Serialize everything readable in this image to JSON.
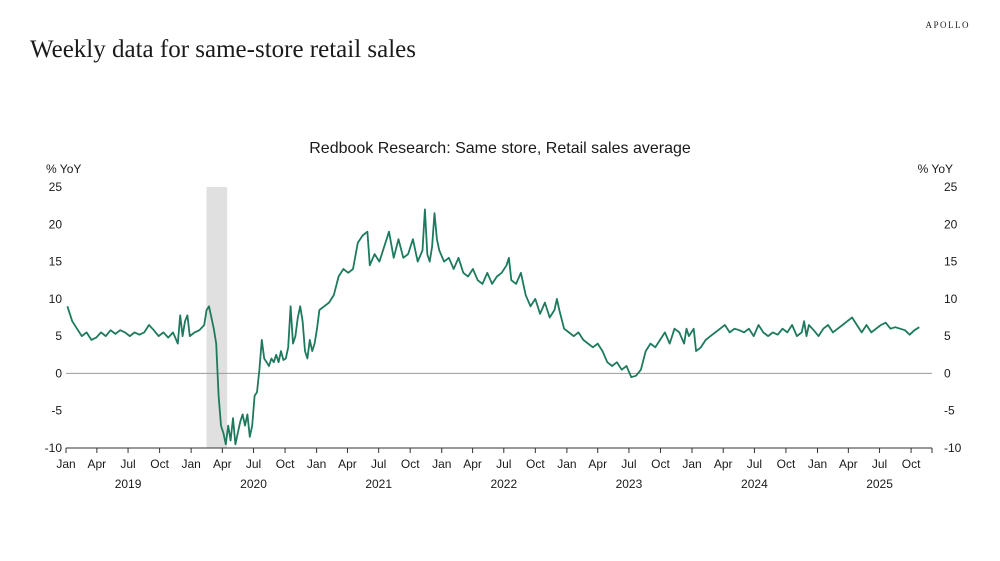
{
  "brand": "APOLLO",
  "page_title": "Weekly data for same-store retail sales",
  "colors": {
    "line": "#1e7a5f",
    "recession": "#e0e0e0",
    "zero_line": "#999999",
    "axis": "#333333"
  },
  "chart_data": {
    "type": "line",
    "title": "Redbook Research: Same store, Retail sales average",
    "ylabel_left": "% YoY",
    "ylabel_right": "% YoY",
    "ylim": [
      -10,
      25
    ],
    "yticks": [
      25,
      20,
      15,
      10,
      5,
      0,
      -5,
      -10
    ],
    "xlim": [
      "2019-01-01",
      "2025-12-01"
    ],
    "month_ticks": [
      "Jan",
      "Apr",
      "Jul",
      "Oct",
      "Jan",
      "Apr",
      "Jul",
      "Oct",
      "Jan",
      "Apr",
      "Jul",
      "Oct",
      "Jan",
      "Apr",
      "Jul",
      "Oct",
      "Jan",
      "Apr",
      "Jul",
      "Oct",
      "Jan",
      "Apr",
      "Jul",
      "Oct",
      "Jan",
      "Apr",
      "Jul",
      "Oct"
    ],
    "years": [
      "2019",
      "2020",
      "2021",
      "2022",
      "2023",
      "2024",
      "2025"
    ],
    "recession_band": [
      "2020-02-15",
      "2020-04-15"
    ],
    "legend": "none",
    "grid": false,
    "series": [
      {
        "color": "#1e7a5f",
        "points": [
          [
            "2019-01-05",
            9.0
          ],
          [
            "2019-01-19",
            7.0
          ],
          [
            "2019-02-02",
            6.0
          ],
          [
            "2019-02-16",
            5.0
          ],
          [
            "2019-03-02",
            5.5
          ],
          [
            "2019-03-16",
            4.5
          ],
          [
            "2019-03-30",
            4.8
          ],
          [
            "2019-04-13",
            5.5
          ],
          [
            "2019-04-27",
            5.0
          ],
          [
            "2019-05-11",
            5.8
          ],
          [
            "2019-05-25",
            5.3
          ],
          [
            "2019-06-08",
            5.8
          ],
          [
            "2019-06-22",
            5.5
          ],
          [
            "2019-07-06",
            5.0
          ],
          [
            "2019-07-20",
            5.5
          ],
          [
            "2019-08-03",
            5.2
          ],
          [
            "2019-08-17",
            5.5
          ],
          [
            "2019-08-31",
            6.5
          ],
          [
            "2019-09-14",
            5.8
          ],
          [
            "2019-09-28",
            5.0
          ],
          [
            "2019-10-12",
            5.5
          ],
          [
            "2019-10-26",
            4.8
          ],
          [
            "2019-11-09",
            5.5
          ],
          [
            "2019-11-23",
            4.0
          ],
          [
            "2019-11-30",
            7.8
          ],
          [
            "2019-12-07",
            5.0
          ],
          [
            "2019-12-14",
            7.0
          ],
          [
            "2019-12-21",
            7.8
          ],
          [
            "2019-12-28",
            5.0
          ],
          [
            "2020-01-11",
            5.5
          ],
          [
            "2020-01-25",
            5.8
          ],
          [
            "2020-02-08",
            6.5
          ],
          [
            "2020-02-15",
            8.5
          ],
          [
            "2020-02-22",
            9.0
          ],
          [
            "2020-03-07",
            6.0
          ],
          [
            "2020-03-14",
            4.0
          ],
          [
            "2020-03-21",
            -3.0
          ],
          [
            "2020-03-28",
            -7.0
          ],
          [
            "2020-04-04",
            -8.0
          ],
          [
            "2020-04-11",
            -9.5
          ],
          [
            "2020-04-18",
            -7.0
          ],
          [
            "2020-04-25",
            -9.0
          ],
          [
            "2020-05-02",
            -6.0
          ],
          [
            "2020-05-09",
            -9.5
          ],
          [
            "2020-05-16",
            -8.0
          ],
          [
            "2020-05-23",
            -6.5
          ],
          [
            "2020-05-30",
            -5.5
          ],
          [
            "2020-06-06",
            -7.0
          ],
          [
            "2020-06-13",
            -5.5
          ],
          [
            "2020-06-20",
            -8.5
          ],
          [
            "2020-06-27",
            -7.0
          ],
          [
            "2020-07-04",
            -3.0
          ],
          [
            "2020-07-11",
            -2.5
          ],
          [
            "2020-07-18",
            0.5
          ],
          [
            "2020-07-25",
            4.5
          ],
          [
            "2020-08-01",
            2.0
          ],
          [
            "2020-08-08",
            1.5
          ],
          [
            "2020-08-15",
            1.0
          ],
          [
            "2020-08-22",
            2.0
          ],
          [
            "2020-08-29",
            1.5
          ],
          [
            "2020-09-05",
            2.5
          ],
          [
            "2020-09-12",
            1.5
          ],
          [
            "2020-09-19",
            3.0
          ],
          [
            "2020-09-26",
            1.8
          ],
          [
            "2020-10-03",
            2.0
          ],
          [
            "2020-10-10",
            3.5
          ],
          [
            "2020-10-17",
            9.0
          ],
          [
            "2020-10-24",
            4.0
          ],
          [
            "2020-10-31",
            5.0
          ],
          [
            "2020-11-07",
            7.5
          ],
          [
            "2020-11-14",
            9.0
          ],
          [
            "2020-11-21",
            7.0
          ],
          [
            "2020-11-28",
            3.0
          ],
          [
            "2020-12-05",
            2.0
          ],
          [
            "2020-12-12",
            4.5
          ],
          [
            "2020-12-19",
            3.0
          ],
          [
            "2020-12-26",
            4.0
          ],
          [
            "2021-01-02",
            6.0
          ],
          [
            "2021-01-09",
            8.5
          ],
          [
            "2021-01-23",
            9.0
          ],
          [
            "2021-02-06",
            9.5
          ],
          [
            "2021-02-20",
            10.5
          ],
          [
            "2021-03-06",
            13.0
          ],
          [
            "2021-03-20",
            14.0
          ],
          [
            "2021-04-03",
            13.5
          ],
          [
            "2021-04-17",
            14.0
          ],
          [
            "2021-05-01",
            17.5
          ],
          [
            "2021-05-15",
            18.5
          ],
          [
            "2021-05-29",
            19.0
          ],
          [
            "2021-06-05",
            14.5
          ],
          [
            "2021-06-19",
            16.0
          ],
          [
            "2021-07-03",
            15.0
          ],
          [
            "2021-07-17",
            17.0
          ],
          [
            "2021-07-31",
            19.0
          ],
          [
            "2021-08-14",
            15.5
          ],
          [
            "2021-08-28",
            18.0
          ],
          [
            "2021-09-11",
            15.5
          ],
          [
            "2021-09-25",
            16.0
          ],
          [
            "2021-10-09",
            18.0
          ],
          [
            "2021-10-23",
            15.0
          ],
          [
            "2021-11-06",
            16.5
          ],
          [
            "2021-11-13",
            22.0
          ],
          [
            "2021-11-20",
            16.0
          ],
          [
            "2021-11-27",
            15.0
          ],
          [
            "2021-12-04",
            17.0
          ],
          [
            "2021-12-11",
            21.5
          ],
          [
            "2021-12-18",
            18.0
          ],
          [
            "2021-12-25",
            16.5
          ],
          [
            "2022-01-08",
            15.0
          ],
          [
            "2022-01-22",
            15.5
          ],
          [
            "2022-02-05",
            14.0
          ],
          [
            "2022-02-19",
            15.5
          ],
          [
            "2022-03-05",
            13.5
          ],
          [
            "2022-03-19",
            13.0
          ],
          [
            "2022-04-02",
            14.0
          ],
          [
            "2022-04-16",
            12.5
          ],
          [
            "2022-04-30",
            12.0
          ],
          [
            "2022-05-14",
            13.5
          ],
          [
            "2022-05-28",
            12.0
          ],
          [
            "2022-06-11",
            13.0
          ],
          [
            "2022-06-25",
            13.5
          ],
          [
            "2022-07-09",
            14.5
          ],
          [
            "2022-07-16",
            15.5
          ],
          [
            "2022-07-23",
            12.5
          ],
          [
            "2022-08-06",
            12.0
          ],
          [
            "2022-08-20",
            13.5
          ],
          [
            "2022-09-03",
            10.5
          ],
          [
            "2022-09-17",
            9.0
          ],
          [
            "2022-10-01",
            10.0
          ],
          [
            "2022-10-15",
            8.0
          ],
          [
            "2022-10-29",
            9.5
          ],
          [
            "2022-11-12",
            7.5
          ],
          [
            "2022-11-26",
            8.5
          ],
          [
            "2022-12-03",
            10.0
          ],
          [
            "2022-12-10",
            8.5
          ],
          [
            "2022-12-24",
            6.0
          ],
          [
            "2023-01-07",
            5.5
          ],
          [
            "2023-01-21",
            5.0
          ],
          [
            "2023-02-04",
            5.5
          ],
          [
            "2023-02-18",
            4.5
          ],
          [
            "2023-03-04",
            4.0
          ],
          [
            "2023-03-18",
            3.5
          ],
          [
            "2023-04-01",
            4.0
          ],
          [
            "2023-04-15",
            3.0
          ],
          [
            "2023-04-29",
            1.5
          ],
          [
            "2023-05-13",
            1.0
          ],
          [
            "2023-05-27",
            1.5
          ],
          [
            "2023-06-10",
            0.5
          ],
          [
            "2023-06-24",
            1.0
          ],
          [
            "2023-07-08",
            -0.5
          ],
          [
            "2023-07-22",
            -0.3
          ],
          [
            "2023-08-05",
            0.5
          ],
          [
            "2023-08-19",
            3.0
          ],
          [
            "2023-09-02",
            4.0
          ],
          [
            "2023-09-16",
            3.5
          ],
          [
            "2023-09-30",
            4.5
          ],
          [
            "2023-10-14",
            5.5
          ],
          [
            "2023-10-28",
            4.0
          ],
          [
            "2023-11-11",
            6.0
          ],
          [
            "2023-11-25",
            5.5
          ],
          [
            "2023-12-09",
            4.0
          ],
          [
            "2023-12-16",
            6.0
          ],
          [
            "2023-12-23",
            5.0
          ],
          [
            "2024-01-06",
            6.0
          ],
          [
            "2024-01-13",
            3.0
          ],
          [
            "2024-01-27",
            3.5
          ],
          [
            "2024-02-10",
            4.5
          ],
          [
            "2024-02-24",
            5.0
          ],
          [
            "2024-03-09",
            5.5
          ],
          [
            "2024-03-23",
            6.0
          ],
          [
            "2024-04-06",
            6.5
          ],
          [
            "2024-04-20",
            5.5
          ],
          [
            "2024-05-04",
            6.0
          ],
          [
            "2024-05-18",
            5.8
          ],
          [
            "2024-06-01",
            5.5
          ],
          [
            "2024-06-15",
            6.0
          ],
          [
            "2024-06-29",
            5.0
          ],
          [
            "2024-07-13",
            6.5
          ],
          [
            "2024-07-27",
            5.5
          ],
          [
            "2024-08-10",
            5.0
          ],
          [
            "2024-08-24",
            5.5
          ],
          [
            "2024-09-07",
            5.2
          ],
          [
            "2024-09-21",
            6.0
          ],
          [
            "2024-10-05",
            5.5
          ],
          [
            "2024-10-19",
            6.5
          ],
          [
            "2024-11-02",
            5.0
          ],
          [
            "2024-11-16",
            5.5
          ],
          [
            "2024-11-23",
            7.0
          ],
          [
            "2024-11-30",
            5.0
          ],
          [
            "2024-12-07",
            6.5
          ],
          [
            "2024-12-21",
            5.8
          ],
          [
            "2025-01-04",
            5.0
          ],
          [
            "2025-01-18",
            6.0
          ],
          [
            "2025-02-01",
            6.5
          ],
          [
            "2025-02-15",
            5.5
          ],
          [
            "2025-03-01",
            6.0
          ],
          [
            "2025-03-15",
            6.5
          ],
          [
            "2025-03-29",
            7.0
          ],
          [
            "2025-04-12",
            7.5
          ],
          [
            "2025-04-26",
            6.5
          ],
          [
            "2025-05-10",
            5.5
          ],
          [
            "2025-05-24",
            6.5
          ],
          [
            "2025-06-07",
            5.5
          ],
          [
            "2025-06-21",
            6.0
          ],
          [
            "2025-07-05",
            6.5
          ],
          [
            "2025-07-19",
            6.8
          ],
          [
            "2025-08-02",
            6.0
          ],
          [
            "2025-08-16",
            6.2
          ],
          [
            "2025-08-30",
            6.0
          ],
          [
            "2025-09-13",
            5.8
          ],
          [
            "2025-09-27",
            5.2
          ],
          [
            "2025-10-11",
            5.8
          ],
          [
            "2025-10-25",
            6.2
          ]
        ]
      }
    ]
  }
}
